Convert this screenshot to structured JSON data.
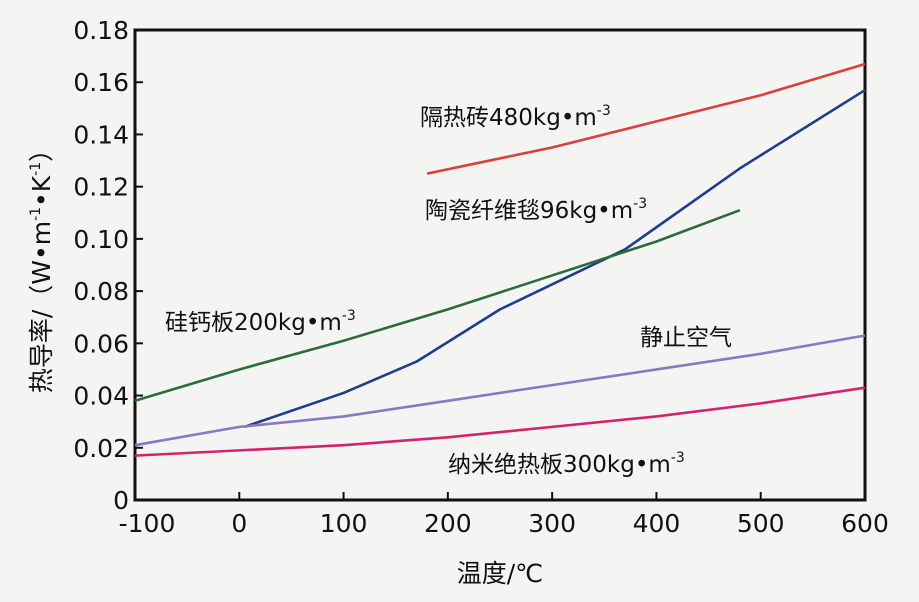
{
  "chart_data": {
    "type": "line",
    "xlabel": "温度/℃",
    "ylabel": "热导率/（W•m⁻¹•K⁻¹）",
    "xlim": [
      -100,
      600
    ],
    "ylim": [
      0,
      0.18
    ],
    "xticks": [
      "-100",
      "0",
      "100",
      "200",
      "300",
      "400",
      "500",
      "600"
    ],
    "yticks": [
      "0",
      "0.02",
      "0.04",
      "0.06",
      "0.08",
      "0.10",
      "0.12",
      "0.14",
      "0.16",
      "0.18"
    ],
    "grid": false,
    "series": [
      {
        "name": "隔热砖480kg•m⁻³",
        "color": "#d9413a",
        "points": [
          [
            180,
            0.125
          ],
          [
            300,
            0.135
          ],
          [
            400,
            0.145
          ],
          [
            500,
            0.155
          ],
          [
            600,
            0.167
          ]
        ]
      },
      {
        "name": "陶瓷纤维毯96kg•m⁻³",
        "color": "#1f3d8c",
        "points": [
          [
            5,
            0.028
          ],
          [
            100,
            0.041
          ],
          [
            170,
            0.053
          ],
          [
            250,
            0.073
          ],
          [
            370,
            0.096
          ],
          [
            480,
            0.127
          ],
          [
            600,
            0.157
          ]
        ]
      },
      {
        "name": "硅钙板200kg•m⁻³",
        "color": "#2e6b3a",
        "points": [
          [
            -100,
            0.038
          ],
          [
            0,
            0.05
          ],
          [
            100,
            0.061
          ],
          [
            200,
            0.073
          ],
          [
            300,
            0.086
          ],
          [
            400,
            0.099
          ],
          [
            480,
            0.111
          ]
        ]
      },
      {
        "name": "静止空气",
        "color": "#8a79c2",
        "points": [
          [
            -100,
            0.021
          ],
          [
            0,
            0.028
          ],
          [
            100,
            0.032
          ],
          [
            200,
            0.038
          ],
          [
            300,
            0.044
          ],
          [
            400,
            0.05
          ],
          [
            500,
            0.056
          ],
          [
            600,
            0.063
          ]
        ]
      },
      {
        "name": "纳米绝热板300kg•m⁻³",
        "color": "#d4226f",
        "points": [
          [
            -100,
            0.017
          ],
          [
            0,
            0.019
          ],
          [
            100,
            0.021
          ],
          [
            200,
            0.024
          ],
          [
            300,
            0.028
          ],
          [
            400,
            0.032
          ],
          [
            500,
            0.037
          ],
          [
            600,
            0.043
          ]
        ]
      }
    ]
  },
  "annotations": {
    "brick_main": "隔热砖480kg•m",
    "brick_sup": "-3",
    "fiber_main": "陶瓷纤维毯96kg•m",
    "fiber_sup": "-3",
    "calcium_main": "硅钙板200kg•m",
    "calcium_sup": "-3",
    "air": "静止空气",
    "nano_main": "纳米绝热板300kg•m",
    "nano_sup": "-3"
  },
  "axis_label_parts": {
    "y_main": "热导率/（W•m",
    "y_sup1": "-1",
    "y_mid": "•K",
    "y_sup2": "-1",
    "y_end": "）"
  }
}
